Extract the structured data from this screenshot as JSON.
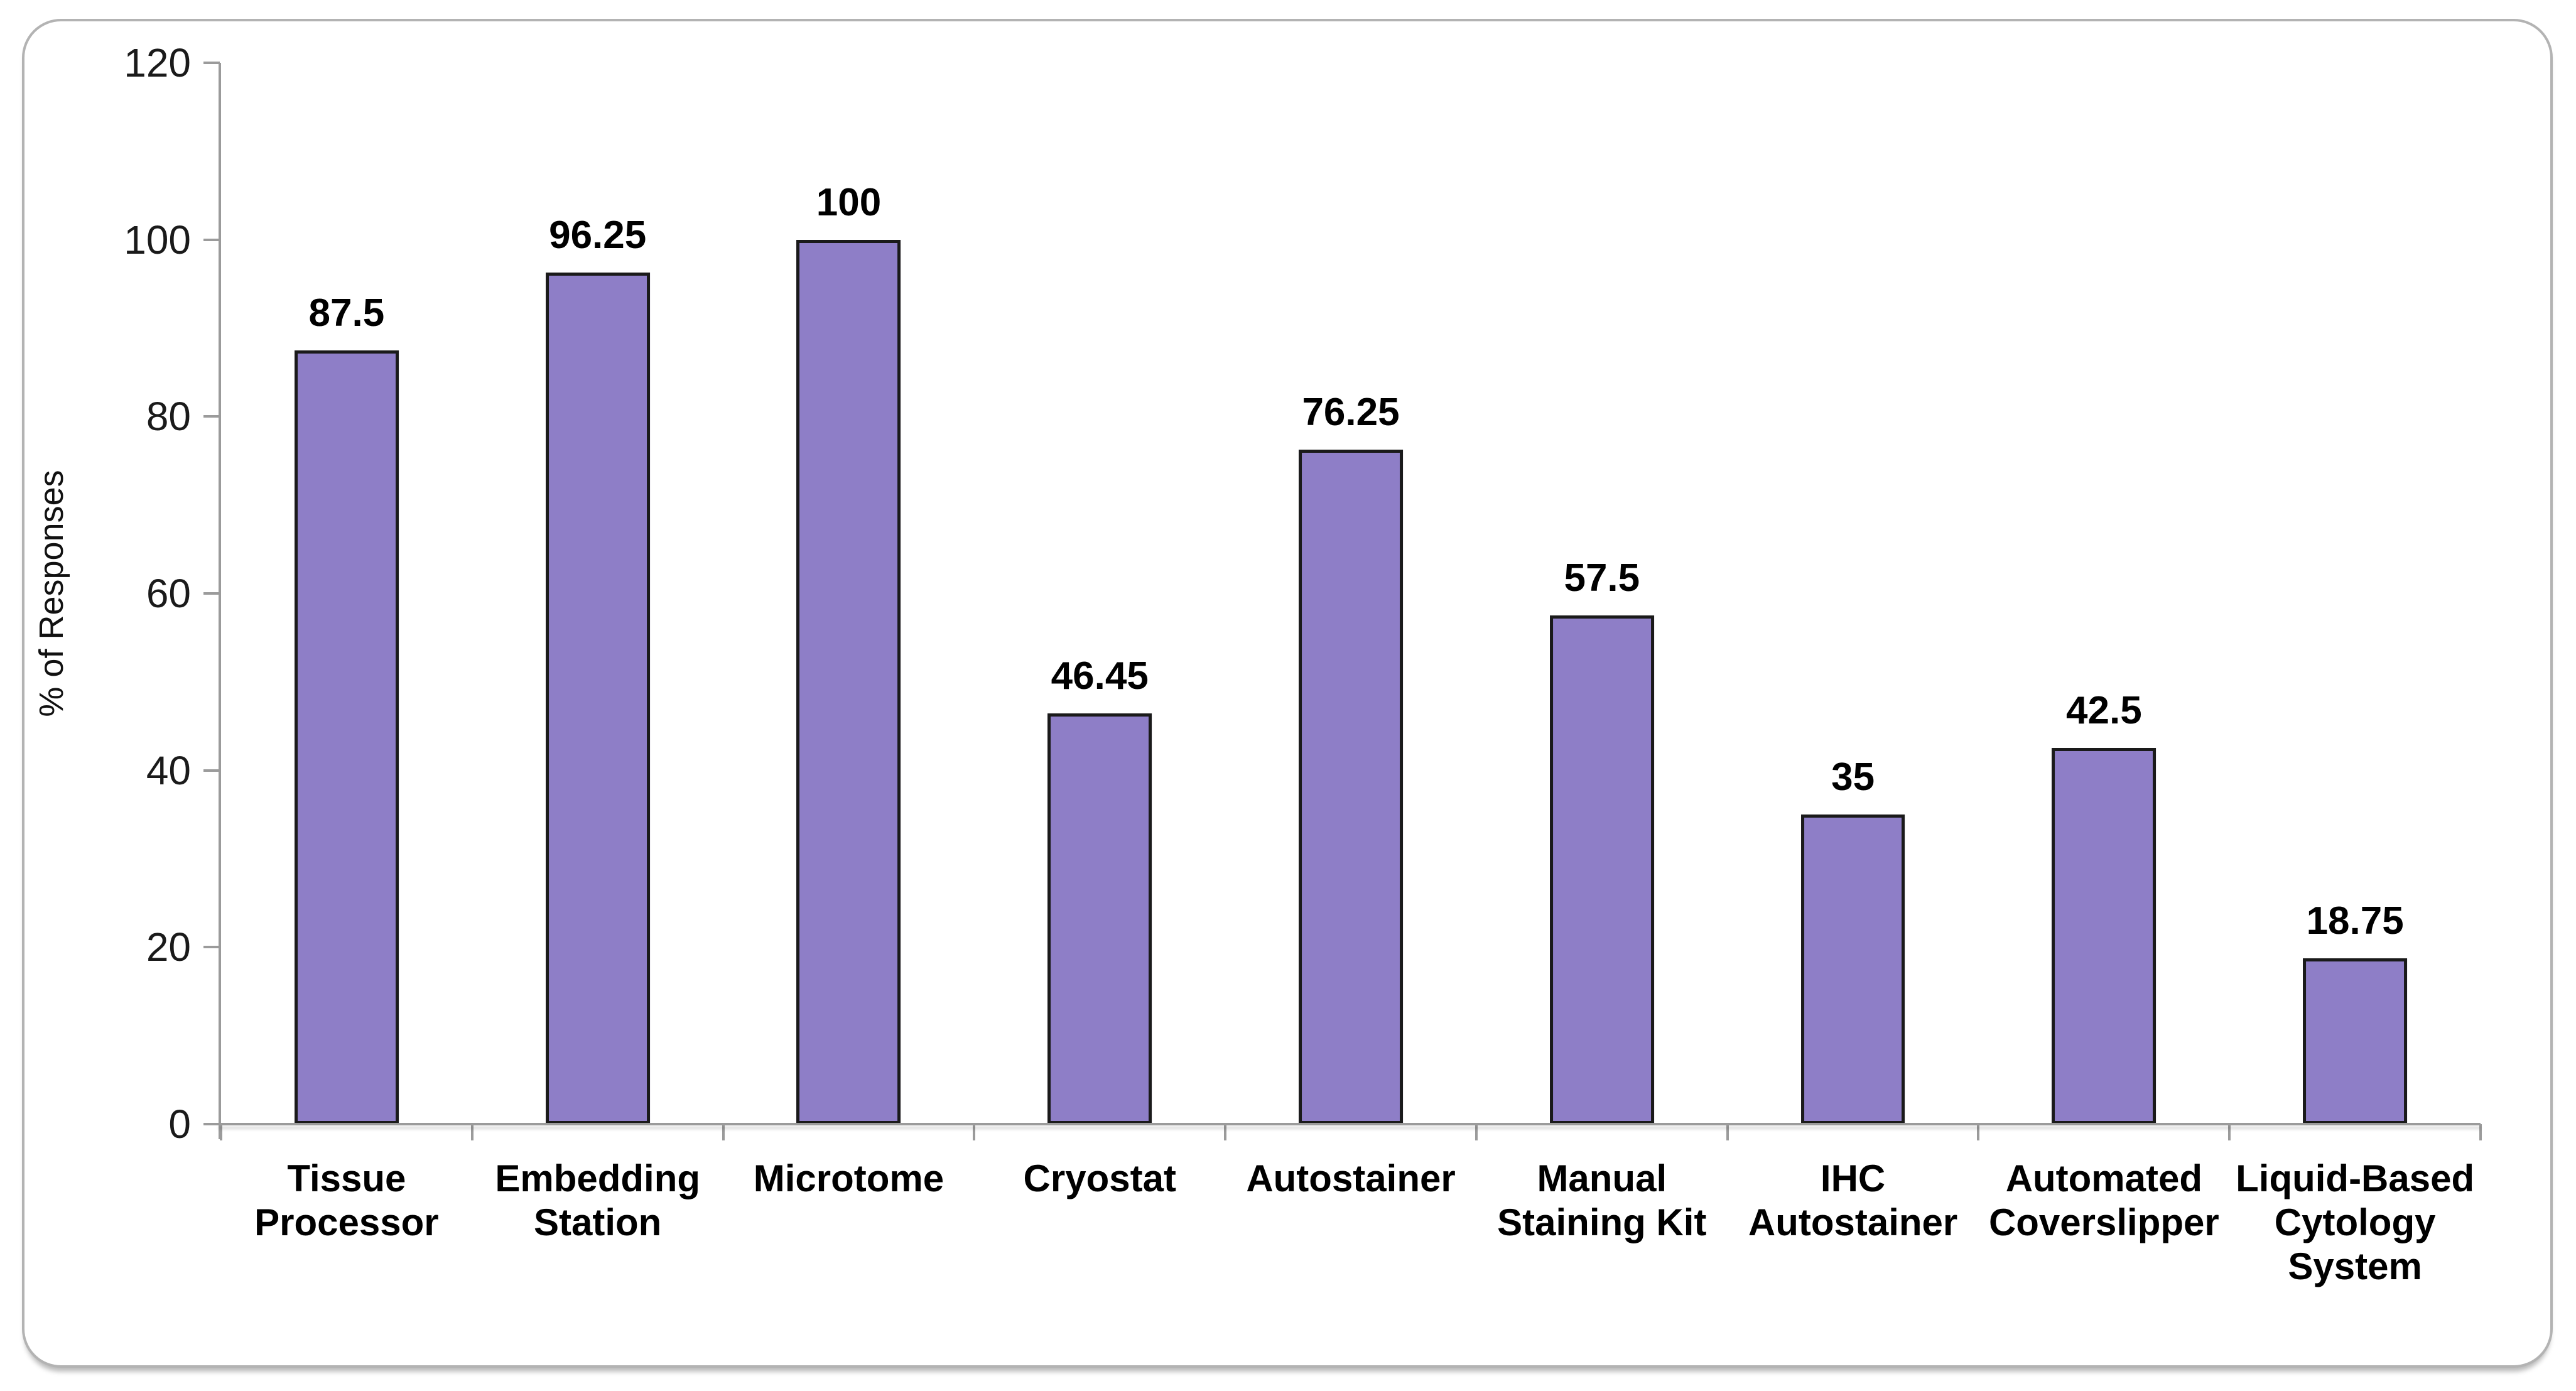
{
  "panel": {
    "background": "#ffffff",
    "border_color": "#b3b3b3"
  },
  "chart_data": {
    "type": "bar",
    "title": "",
    "xlabel": "",
    "ylabel": "% of Responses",
    "categories": [
      "Tissue Processor",
      "Embedding Station",
      "Microtome",
      "Cryostat",
      "Autostainer",
      "Manual Staining Kit",
      "IHC Autostainer",
      "Automated Coverslipper",
      "Liquid-Based Cytology System"
    ],
    "values": [
      87.5,
      96.25,
      100,
      46.45,
      76.25,
      57.5,
      35,
      42.5,
      18.75
    ],
    "value_labels": [
      "87.5",
      "96.25",
      "100",
      "46.45",
      "76.25",
      "57.5",
      "35",
      "42.5",
      "18.75"
    ],
    "ylim": [
      0,
      120
    ],
    "yticks": [
      0,
      20,
      40,
      60,
      80,
      100,
      120
    ],
    "grid": false,
    "legend": "none",
    "bar_fill_color": "#8e7ec7",
    "bar_border_color": "#1a1a1a",
    "axis_color": "#9b9b9b",
    "label_color": "#000000"
  }
}
